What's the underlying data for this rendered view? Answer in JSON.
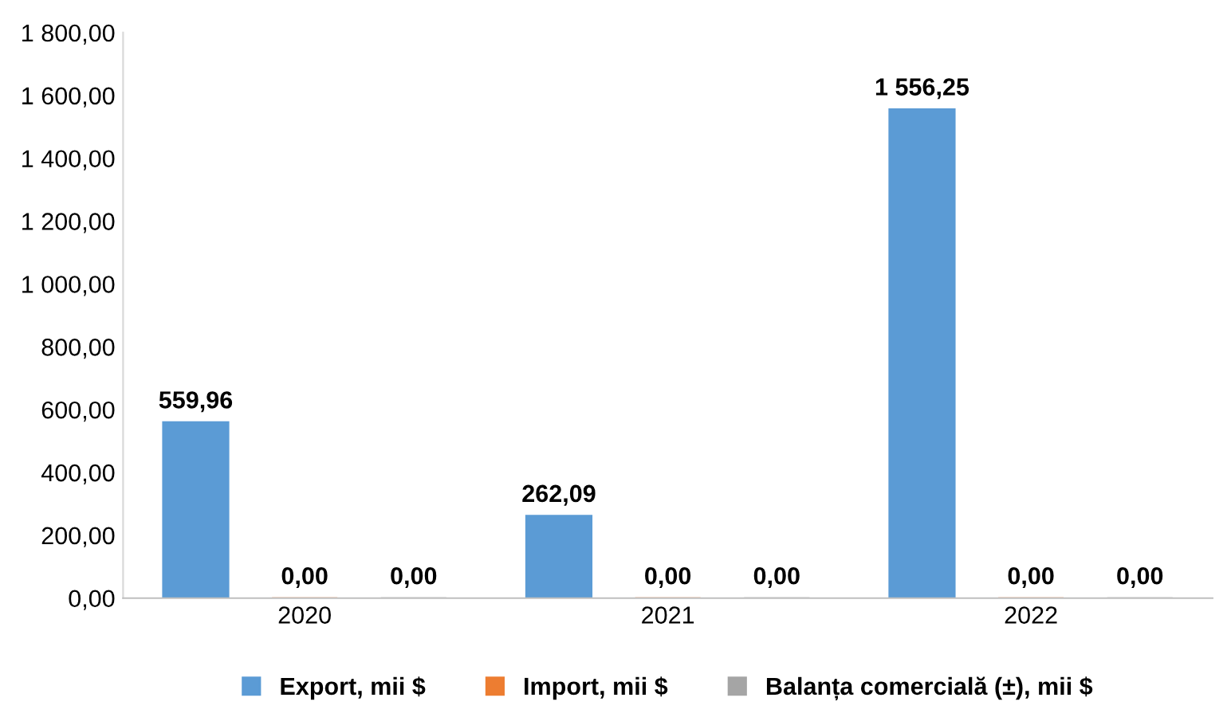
{
  "chart_data": {
    "type": "bar",
    "categories": [
      "2020",
      "2021",
      "2022"
    ],
    "series": [
      {
        "name": "Export, mii $",
        "color": "#5b9bd5",
        "values": [
          559.96,
          262.09,
          1556.25
        ],
        "value_labels": [
          "559,96",
          "262,09",
          "1 556,25"
        ]
      },
      {
        "name": "Import, mii $",
        "color": "#ed7d31",
        "values": [
          0,
          0,
          0
        ],
        "value_labels": [
          "0,00",
          "0,00",
          "0,00"
        ]
      },
      {
        "name": "Balanța comercială (±), mii $",
        "color": "#a5a5a5",
        "values": [
          0,
          0,
          0
        ],
        "value_labels": [
          "0,00",
          "0,00",
          "0,00"
        ]
      }
    ],
    "ylim": [
      0,
      1800
    ],
    "yticks": [
      {
        "value": 0,
        "label": "0,00"
      },
      {
        "value": 200,
        "label": "200,00"
      },
      {
        "value": 400,
        "label": "400,00"
      },
      {
        "value": 600,
        "label": "600,00"
      },
      {
        "value": 800,
        "label": "800,00"
      },
      {
        "value": 1000,
        "label": "1 000,00"
      },
      {
        "value": 1200,
        "label": "1 200,00"
      },
      {
        "value": 1400,
        "label": "1 400,00"
      },
      {
        "value": 1600,
        "label": "1 600,00"
      },
      {
        "value": 1800,
        "label": "1 800,00"
      }
    ],
    "grid": false,
    "legend": "bottom"
  }
}
